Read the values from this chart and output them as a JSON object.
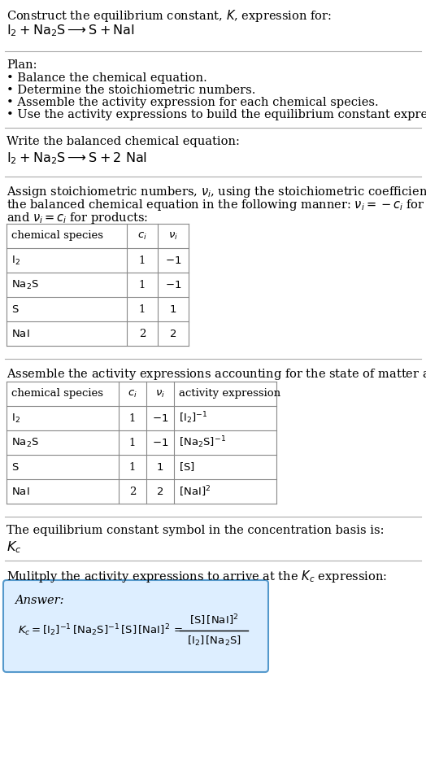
{
  "bg_color": "#ffffff",
  "text_color": "#000000",
  "title_line1": "Construct the equilibrium constant, $K$, expression for:",
  "title_line2": "$\\mathrm{I_2 + Na_2S \\longrightarrow S + NaI}$",
  "plan_header": "Plan:",
  "plan_bullets": [
    "• Balance the chemical equation.",
    "• Determine the stoichiometric numbers.",
    "• Assemble the activity expression for each chemical species.",
    "• Use the activity expressions to build the equilibrium constant expression."
  ],
  "balanced_header": "Write the balanced chemical equation:",
  "balanced_eq": "$\\mathrm{I_2 + Na_2S \\longrightarrow S + 2\\ NaI}$",
  "stoich_intro_1": "Assign stoichiometric numbers, $\\nu_i$, using the stoichiometric coefficients, $c_i$, from",
  "stoich_intro_2": "the balanced chemical equation in the following manner: $\\nu_i = -c_i$ for reactants",
  "stoich_intro_3": "and $\\nu_i = c_i$ for products:",
  "table1_headers": [
    "chemical species",
    "$c_i$",
    "$\\nu_i$"
  ],
  "table1_rows": [
    [
      "$\\mathrm{I_2}$",
      "1",
      "$-1$"
    ],
    [
      "$\\mathrm{Na_2S}$",
      "1",
      "$-1$"
    ],
    [
      "$\\mathrm{S}$",
      "1",
      "$1$"
    ],
    [
      "$\\mathrm{NaI}$",
      "2",
      "$2$"
    ]
  ],
  "activity_intro": "Assemble the activity expressions accounting for the state of matter and $\\nu_i$:",
  "table2_headers": [
    "chemical species",
    "$c_i$",
    "$\\nu_i$",
    "activity expression"
  ],
  "table2_rows": [
    [
      "$\\mathrm{I_2}$",
      "1",
      "$-1$",
      "$[\\mathrm{I_2}]^{-1}$"
    ],
    [
      "$\\mathrm{Na_2S}$",
      "1",
      "$-1$",
      "$[\\mathrm{Na_2S}]^{-1}$"
    ],
    [
      "$\\mathrm{S}$",
      "1",
      "$1$",
      "$[\\mathrm{S}]$"
    ],
    [
      "$\\mathrm{NaI}$",
      "2",
      "$2$",
      "$[\\mathrm{NaI}]^2$"
    ]
  ],
  "kc_intro": "The equilibrium constant symbol in the concentration basis is:",
  "kc_symbol": "$K_c$",
  "multiply_intro": "Mulitply the activity expressions to arrive at the $K_c$ expression:",
  "answer_label": "Answer:",
  "answer_box_bg": "#ddeeff",
  "answer_box_border": "#5599cc",
  "separator_color": "#aaaaaa",
  "table_line_color": "#888888",
  "fs": 10.5,
  "fs_small": 9.5
}
